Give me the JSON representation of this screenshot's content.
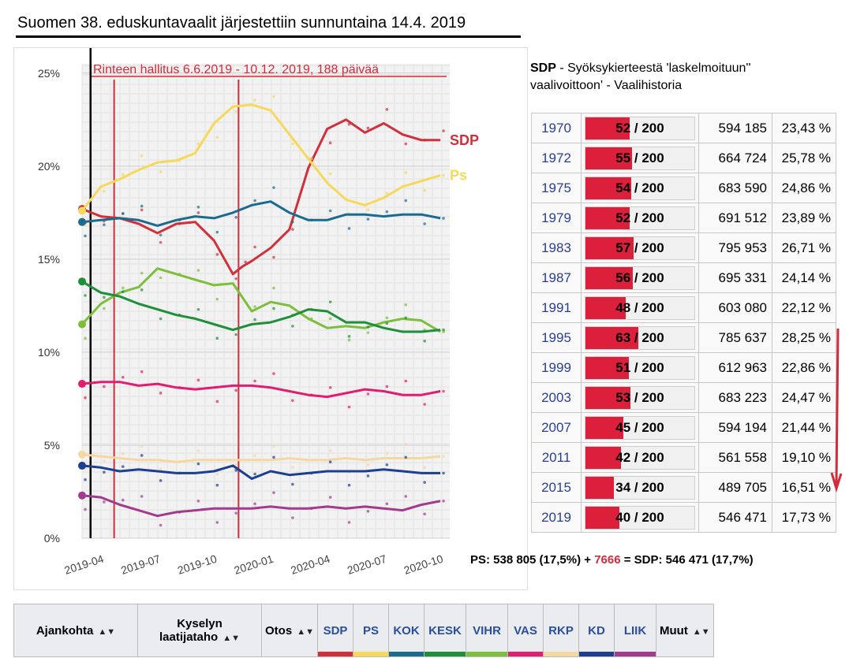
{
  "title": "Suomen 38. eduskuntavaalit järjestettiin sunnuntaina 14.4. 2019",
  "chart_data": {
    "type": "line",
    "x_ticks": [
      "2019-04",
      "2019-07",
      "2019-10",
      "2020-01",
      "2020-04",
      "2020-07",
      "2020-10"
    ],
    "y_ticks": [
      "0%",
      "5%",
      "10%",
      "15%",
      "20%",
      "25%"
    ],
    "ylim": [
      0,
      25.5
    ],
    "xlim": [
      0,
      19.5
    ],
    "annotation": "Rinteen hallitus 6.6.2019 - 10.12. 2019, 188 päivää",
    "election_x": 0.45,
    "gov_start_x": 1.7,
    "gov_end_x": 8.3,
    "series": [
      {
        "name": "SDP",
        "label": "SDP",
        "color": "#d22f3a",
        "points": [
          [
            0,
            17.7
          ],
          [
            1,
            17.3
          ],
          [
            2,
            17.2
          ],
          [
            3,
            16.9
          ],
          [
            4,
            16.4
          ],
          [
            5,
            16.9
          ],
          [
            6,
            17.0
          ],
          [
            7,
            16.0
          ],
          [
            8,
            14.2
          ],
          [
            8.5,
            14.6
          ],
          [
            9,
            14.9
          ],
          [
            10,
            15.6
          ],
          [
            11,
            16.6
          ],
          [
            12,
            19.9
          ],
          [
            13,
            22.0
          ],
          [
            14,
            22.5
          ],
          [
            15,
            21.8
          ],
          [
            16,
            22.3
          ],
          [
            17,
            21.7
          ],
          [
            18,
            21.4
          ],
          [
            19,
            21.4
          ]
        ]
      },
      {
        "name": "PS",
        "label": "Ps",
        "color": "#f6d85a",
        "points": [
          [
            0,
            17.6
          ],
          [
            1,
            18.9
          ],
          [
            2,
            19.3
          ],
          [
            3,
            19.8
          ],
          [
            4,
            20.2
          ],
          [
            5,
            20.3
          ],
          [
            6,
            20.7
          ],
          [
            7,
            22.3
          ],
          [
            8,
            23.2
          ],
          [
            9,
            23.3
          ],
          [
            10,
            23.0
          ],
          [
            11,
            21.7
          ],
          [
            12,
            20.4
          ],
          [
            13,
            19.1
          ],
          [
            14,
            18.2
          ],
          [
            15,
            17.9
          ],
          [
            16,
            18.3
          ],
          [
            17,
            18.9
          ],
          [
            18,
            19.2
          ],
          [
            19,
            19.5
          ]
        ]
      },
      {
        "name": "KOK",
        "label": "",
        "color": "#1b6b8e",
        "points": [
          [
            0,
            17.0
          ],
          [
            1,
            17.1
          ],
          [
            2,
            17.2
          ],
          [
            3,
            17.1
          ],
          [
            4,
            16.8
          ],
          [
            5,
            17.1
          ],
          [
            6,
            17.3
          ],
          [
            7,
            17.2
          ],
          [
            8,
            17.5
          ],
          [
            9,
            17.9
          ],
          [
            10,
            18.1
          ],
          [
            11,
            17.5
          ],
          [
            12,
            17.1
          ],
          [
            13,
            17.1
          ],
          [
            14,
            17.4
          ],
          [
            15,
            17.4
          ],
          [
            16,
            17.3
          ],
          [
            17,
            17.4
          ],
          [
            18,
            17.4
          ],
          [
            19,
            17.2
          ]
        ]
      },
      {
        "name": "VIHR",
        "label": "",
        "color": "#7cbf3a",
        "points": [
          [
            0,
            11.5
          ],
          [
            1,
            12.6
          ],
          [
            2,
            13.2
          ],
          [
            3,
            13.5
          ],
          [
            4,
            14.5
          ],
          [
            5,
            14.2
          ],
          [
            6,
            13.9
          ],
          [
            7,
            13.6
          ],
          [
            8,
            13.7
          ],
          [
            9,
            12.2
          ],
          [
            10,
            12.7
          ],
          [
            11,
            12.5
          ],
          [
            12,
            11.8
          ],
          [
            13,
            11.3
          ],
          [
            14,
            11.4
          ],
          [
            15,
            11.3
          ],
          [
            16,
            11.6
          ],
          [
            17,
            11.8
          ],
          [
            18,
            11.7
          ],
          [
            19,
            11.1
          ]
        ]
      },
      {
        "name": "KESK",
        "label": "",
        "color": "#1f8f3a",
        "points": [
          [
            0,
            13.8
          ],
          [
            1,
            13.2
          ],
          [
            2,
            13.0
          ],
          [
            3,
            12.6
          ],
          [
            4,
            12.3
          ],
          [
            5,
            12.0
          ],
          [
            6,
            11.8
          ],
          [
            7,
            11.5
          ],
          [
            8,
            11.2
          ],
          [
            9,
            11.5
          ],
          [
            10,
            11.6
          ],
          [
            11,
            11.9
          ],
          [
            12,
            12.3
          ],
          [
            13,
            12.2
          ],
          [
            14,
            11.6
          ],
          [
            15,
            11.6
          ],
          [
            16,
            11.3
          ],
          [
            17,
            11.1
          ],
          [
            18,
            11.1
          ],
          [
            19,
            11.2
          ]
        ]
      },
      {
        "name": "VAS",
        "label": "",
        "color": "#e21c6e",
        "points": [
          [
            0,
            8.3
          ],
          [
            1,
            8.4
          ],
          [
            2,
            8.4
          ],
          [
            3,
            8.2
          ],
          [
            4,
            8.3
          ],
          [
            5,
            8.1
          ],
          [
            6,
            8.0
          ],
          [
            7,
            8.1
          ],
          [
            8,
            8.2
          ],
          [
            9,
            8.2
          ],
          [
            10,
            8.1
          ],
          [
            11,
            7.9
          ],
          [
            12,
            7.7
          ],
          [
            13,
            7.6
          ],
          [
            14,
            7.8
          ],
          [
            15,
            8.0
          ],
          [
            16,
            7.9
          ],
          [
            17,
            7.7
          ],
          [
            18,
            7.7
          ],
          [
            19,
            7.9
          ]
        ]
      },
      {
        "name": "RKP",
        "label": "",
        "color": "#f4d8a0",
        "points": [
          [
            0,
            4.5
          ],
          [
            1,
            4.4
          ],
          [
            2,
            4.3
          ],
          [
            3,
            4.2
          ],
          [
            4,
            4.2
          ],
          [
            5,
            4.1
          ],
          [
            6,
            4.2
          ],
          [
            7,
            4.2
          ],
          [
            8,
            4.2
          ],
          [
            9,
            4.2
          ],
          [
            10,
            4.2
          ],
          [
            11,
            4.3
          ],
          [
            12,
            4.2
          ],
          [
            13,
            4.2
          ],
          [
            14,
            4.3
          ],
          [
            15,
            4.2
          ],
          [
            16,
            4.3
          ],
          [
            17,
            4.3
          ],
          [
            18,
            4.3
          ],
          [
            19,
            4.4
          ]
        ]
      },
      {
        "name": "KD",
        "label": "",
        "color": "#1d3f8f",
        "points": [
          [
            0,
            3.9
          ],
          [
            1,
            3.8
          ],
          [
            2,
            3.6
          ],
          [
            3,
            3.7
          ],
          [
            4,
            3.6
          ],
          [
            5,
            3.5
          ],
          [
            6,
            3.5
          ],
          [
            7,
            3.6
          ],
          [
            8,
            3.9
          ],
          [
            9,
            3.2
          ],
          [
            10,
            3.6
          ],
          [
            11,
            3.4
          ],
          [
            12,
            3.5
          ],
          [
            13,
            3.6
          ],
          [
            14,
            3.6
          ],
          [
            15,
            3.6
          ],
          [
            16,
            3.7
          ],
          [
            17,
            3.6
          ],
          [
            18,
            3.5
          ],
          [
            19,
            3.5
          ]
        ]
      },
      {
        "name": "LIIK",
        "label": "",
        "color": "#a23a8e",
        "points": [
          [
            0,
            2.3
          ],
          [
            1,
            2.2
          ],
          [
            2,
            1.8
          ],
          [
            3,
            1.5
          ],
          [
            4,
            1.2
          ],
          [
            5,
            1.4
          ],
          [
            6,
            1.5
          ],
          [
            7,
            1.6
          ],
          [
            8,
            1.6
          ],
          [
            9,
            1.6
          ],
          [
            10,
            1.7
          ],
          [
            11,
            1.6
          ],
          [
            12,
            1.6
          ],
          [
            13,
            1.7
          ],
          [
            14,
            1.6
          ],
          [
            15,
            1.7
          ],
          [
            16,
            1.6
          ],
          [
            17,
            1.5
          ],
          [
            18,
            1.8
          ],
          [
            19,
            2.0
          ]
        ]
      }
    ]
  },
  "history": {
    "heading_party": "SDP",
    "heading_rest": " - Syöksykierteestä 'laskelmoituun''",
    "heading_line2": "vaalivoittoon' - Vaalihistoria",
    "rows": [
      {
        "year": "1970",
        "seats": 52,
        "seats_text": "52 / 200",
        "votes": "594 185",
        "pct": "23,43 %"
      },
      {
        "year": "1972",
        "seats": 55,
        "seats_text": "55 / 200",
        "votes": "664 724",
        "pct": "25,78 %"
      },
      {
        "year": "1975",
        "seats": 54,
        "seats_text": "54 / 200",
        "votes": "683 590",
        "pct": "24,86 %"
      },
      {
        "year": "1979",
        "seats": 52,
        "seats_text": "52 / 200",
        "votes": "691 512",
        "pct": "23,89 %"
      },
      {
        "year": "1983",
        "seats": 57,
        "seats_text": "57 / 200",
        "votes": "795 953",
        "pct": "26,71 %"
      },
      {
        "year": "1987",
        "seats": 56,
        "seats_text": "56 / 200",
        "votes": "695 331",
        "pct": "24,14 %"
      },
      {
        "year": "1991",
        "seats": 48,
        "seats_text": "48 / 200",
        "votes": "603 080",
        "pct": "22,12 %"
      },
      {
        "year": "1995",
        "seats": 63,
        "seats_text": "63 / 200",
        "votes": "785 637",
        "pct": "28,25 %"
      },
      {
        "year": "1999",
        "seats": 51,
        "seats_text": "51 / 200",
        "votes": "612 963",
        "pct": "22,86 %"
      },
      {
        "year": "2003",
        "seats": 53,
        "seats_text": "53 / 200",
        "votes": "683 223",
        "pct": "24,47 %"
      },
      {
        "year": "2007",
        "seats": 45,
        "seats_text": "45 / 200",
        "votes": "594 194",
        "pct": "21,44 %"
      },
      {
        "year": "2011",
        "seats": 42,
        "seats_text": "42 / 200",
        "votes": "561 558",
        "pct": "19,10 %"
      },
      {
        "year": "2015",
        "seats": 34,
        "seats_text": "34 / 200",
        "votes": "489 705",
        "pct": "16,51 %"
      },
      {
        "year": "2019",
        "seats": 40,
        "seats_text": "40 / 200",
        "votes": "546 471",
        "pct": "17,73 %"
      }
    ]
  },
  "comparison": {
    "left": "PS: 538 805 (17,5%) + ",
    "diff": "7666",
    "right": " = SDP: 546 471 (17,7%)"
  },
  "poll_table": {
    "col_date": "Ajankohta",
    "col_pollster": "Kyselyn laatijataho",
    "col_sample": "Otos",
    "col_other": "Muut",
    "parties": [
      {
        "name": "SDP",
        "color": "#d22f3a"
      },
      {
        "name": "PS",
        "color": "#f6d85a"
      },
      {
        "name": "KOK",
        "color": "#1b6b8e"
      },
      {
        "name": "KESK",
        "color": "#1f8f3a"
      },
      {
        "name": "VIHR",
        "color": "#7cbf3a"
      },
      {
        "name": "VAS",
        "color": "#e21c6e"
      },
      {
        "name": "RKP",
        "color": "#f4d8a0"
      },
      {
        "name": "KD",
        "color": "#1d3f8f"
      },
      {
        "name": "LIIK",
        "color": "#a23a8e"
      }
    ]
  }
}
